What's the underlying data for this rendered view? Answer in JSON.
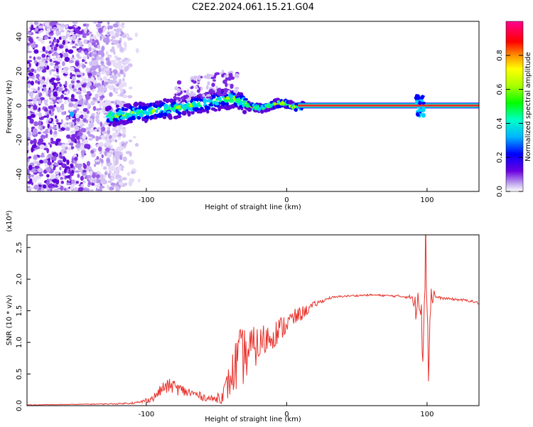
{
  "title": "C2E2.2024.061.15.21.G04",
  "chart_data": [
    {
      "type": "heatmap",
      "title": "C2E2.2024.061.15.21.G04",
      "xlabel": "Height of straight line (km)",
      "ylabel": "Frequency (Hz)",
      "xlim": [
        -185,
        137
      ],
      "ylim": [
        -50,
        49
      ],
      "xticks": [
        -100,
        0,
        100
      ],
      "xtick_labels": [
        "-100",
        "0",
        "100"
      ],
      "yticks": [
        -40,
        -20,
        0,
        20,
        40
      ],
      "ytick_labels": [
        "-40",
        "-20",
        "0",
        "20",
        "40"
      ],
      "colorbar": {
        "label": "Normalized spectral amplitude",
        "range": [
          0.0,
          1.0
        ],
        "ticks": [
          0.0,
          0.2,
          0.4,
          0.6,
          0.8
        ],
        "tick_labels": [
          "0.0",
          "0.2",
          "0.4",
          "0.6",
          "0.8"
        ]
      },
      "signal_trace": {
        "x": [
          -125,
          -110,
          -95,
          -80,
          -65,
          -55,
          -45,
          -38,
          -32,
          -25,
          -18,
          -12,
          -5,
          0,
          5,
          10,
          137
        ],
        "y": [
          -6,
          -4.5,
          -3,
          -1.5,
          0.5,
          2,
          4,
          4,
          2,
          -1,
          -1.5,
          0,
          1.5,
          1,
          -1,
          -0.5,
          0
        ]
      },
      "noise_region_x": [
        -185,
        -115
      ],
      "burst_x": 95
    },
    {
      "type": "line",
      "xlabel": "Height of straight line (km)",
      "ylabel": "SNR (10 * v/v)",
      "y_multiplier": "(x10⁴)",
      "xlim": [
        -185,
        137
      ],
      "ylim": [
        0,
        2.7
      ],
      "xticks": [
        -100,
        0,
        100
      ],
      "xtick_labels": [
        "-100",
        "0",
        "100"
      ],
      "yticks": [
        0.0,
        0.5,
        1.0,
        1.5,
        2.0,
        2.5
      ],
      "ytick_labels": [
        "0.0",
        "0.5",
        "1.0",
        "1.5",
        "2.0",
        "2.5"
      ],
      "series": [
        {
          "name": "SNR",
          "color": "#e8302a",
          "x": [
            -185,
            -150,
            -120,
            -105,
            -95,
            -88,
            -82,
            -75,
            -68,
            -60,
            -52,
            -45,
            -40,
            -35,
            -30,
            -25,
            -20,
            -15,
            -10,
            -5,
            0,
            5,
            10,
            15,
            20,
            25,
            30,
            40,
            50,
            60,
            70,
            80,
            88,
            92,
            95,
            97,
            99,
            101,
            103,
            106,
            110,
            120,
            130,
            137
          ],
          "values": [
            0.01,
            0.02,
            0.03,
            0.05,
            0.12,
            0.28,
            0.32,
            0.24,
            0.2,
            0.14,
            0.1,
            0.18,
            0.42,
            0.7,
            0.8,
            0.9,
            0.95,
            1.05,
            1.12,
            1.2,
            1.3,
            1.38,
            1.45,
            1.52,
            1.6,
            1.65,
            1.7,
            1.73,
            1.74,
            1.75,
            1.74,
            1.73,
            1.72,
            1.55,
            1.9,
            1.1,
            2.6,
            0.7,
            1.8,
            1.72,
            1.7,
            1.68,
            1.66,
            1.62
          ],
          "noise_amplitude": [
            0.005,
            0.005,
            0.01,
            0.02,
            0.06,
            0.1,
            0.12,
            0.1,
            0.08,
            0.06,
            0.05,
            0.15,
            0.3,
            0.5,
            0.45,
            0.35,
            0.3,
            0.28,
            0.22,
            0.2,
            0.18,
            0.14,
            0.12,
            0.08,
            0.05,
            0.03,
            0.02,
            0.015,
            0.015,
            0.015,
            0.015,
            0.02,
            0.03,
            0.2,
            0.4,
            0.6,
            0.5,
            0.4,
            0.3,
            0.03,
            0.02,
            0.02,
            0.02,
            0.02
          ]
        }
      ]
    }
  ]
}
